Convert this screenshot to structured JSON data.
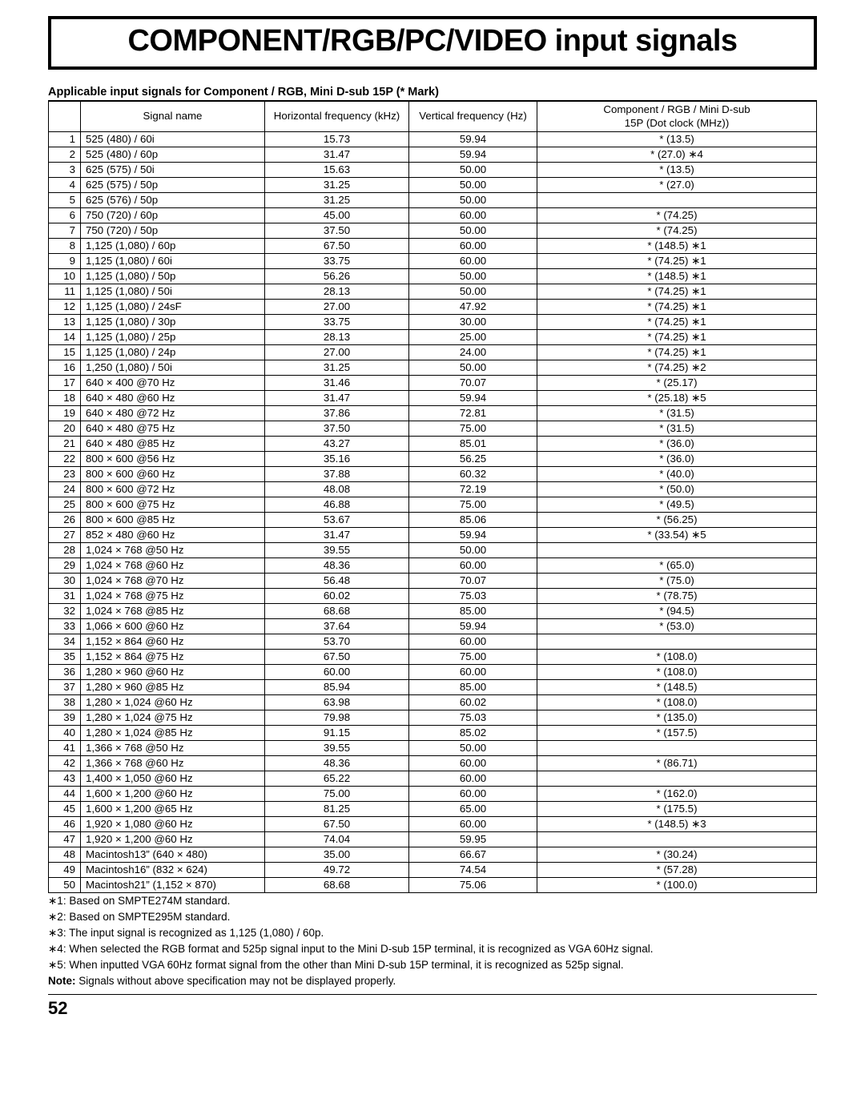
{
  "title": "COMPONENT/RGB/PC/VIDEO input signals",
  "subhead": "Applicable input signals for Component / RGB, Mini D-sub 15P (* Mark)",
  "columns": {
    "idx": "",
    "name": "Signal name",
    "hfreq": "Horizontal frequency (kHz)",
    "vfreq": "Vertical frequency (Hz)",
    "clk_line1": "Component / RGB / Mini D-sub",
    "clk_line2": "15P (Dot clock (MHz))"
  },
  "rows": [
    {
      "n": "1",
      "name": "525   (480) / 60i",
      "h": "15.73",
      "v": "59.94",
      "clk": "*  (13.5)"
    },
    {
      "n": "2",
      "name": "525   (480) / 60p",
      "h": "31.47",
      "v": "59.94",
      "clk": "*  (27.0)    ∗4"
    },
    {
      "n": "3",
      "name": "625   (575) / 50i",
      "h": "15.63",
      "v": "50.00",
      "clk": "*  (13.5)"
    },
    {
      "n": "4",
      "name": "625   (575) / 50p",
      "h": "31.25",
      "v": "50.00",
      "clk": "*  (27.0)"
    },
    {
      "n": "5",
      "name": "625   (576) / 50p",
      "h": "31.25",
      "v": "50.00",
      "clk": ""
    },
    {
      "n": "6",
      "name": "750   (720) / 60p",
      "h": "45.00",
      "v": "60.00",
      "clk": "*  (74.25)"
    },
    {
      "n": "7",
      "name": "750   (720) / 50p",
      "h": "37.50",
      "v": "50.00",
      "clk": "*  (74.25)"
    },
    {
      "n": "8",
      "name": "1,125   (1,080) / 60p",
      "h": "67.50",
      "v": "60.00",
      "clk": "*  (148.5)   ∗1"
    },
    {
      "n": "9",
      "name": "1,125   (1,080) / 60i",
      "h": "33.75",
      "v": "60.00",
      "clk": "*  (74.25)   ∗1"
    },
    {
      "n": "10",
      "name": "1,125   (1,080) / 50p",
      "h": "56.26",
      "v": "50.00",
      "clk": "*  (148.5)   ∗1"
    },
    {
      "n": "11",
      "name": "1,125   (1,080) / 50i",
      "h": "28.13",
      "v": "50.00",
      "clk": "*  (74.25)   ∗1"
    },
    {
      "n": "12",
      "name": "1,125   (1,080) / 24sF",
      "h": "27.00",
      "v": "47.92",
      "clk": "*  (74.25)   ∗1"
    },
    {
      "n": "13",
      "name": "1,125   (1,080) / 30p",
      "h": "33.75",
      "v": "30.00",
      "clk": "*  (74.25)   ∗1"
    },
    {
      "n": "14",
      "name": "1,125   (1,080) / 25p",
      "h": "28.13",
      "v": "25.00",
      "clk": "*  (74.25)   ∗1"
    },
    {
      "n": "15",
      "name": "1,125   (1,080) / 24p",
      "h": "27.00",
      "v": "24.00",
      "clk": "*  (74.25)   ∗1"
    },
    {
      "n": "16",
      "name": "1,250   (1,080) / 50i",
      "h": "31.25",
      "v": "50.00",
      "clk": "*  (74.25)   ∗2"
    },
    {
      "n": "17",
      "name": "640 × 400 @70 Hz",
      "h": "31.46",
      "v": "70.07",
      "clk": "*  (25.17)"
    },
    {
      "n": "18",
      "name": "640 × 480 @60 Hz",
      "h": "31.47",
      "v": "59.94",
      "clk": "*  (25.18)   ∗5"
    },
    {
      "n": "19",
      "name": "640 × 480 @72 Hz",
      "h": "37.86",
      "v": "72.81",
      "clk": "*  (31.5)"
    },
    {
      "n": "20",
      "name": "640 × 480 @75 Hz",
      "h": "37.50",
      "v": "75.00",
      "clk": "*  (31.5)"
    },
    {
      "n": "21",
      "name": "640 × 480 @85 Hz",
      "h": "43.27",
      "v": "85.01",
      "clk": "*  (36.0)"
    },
    {
      "n": "22",
      "name": "800 × 600 @56 Hz",
      "h": "35.16",
      "v": "56.25",
      "clk": "*  (36.0)"
    },
    {
      "n": "23",
      "name": "800 × 600 @60 Hz",
      "h": "37.88",
      "v": "60.32",
      "clk": "*  (40.0)"
    },
    {
      "n": "24",
      "name": "800 × 600 @72 Hz",
      "h": "48.08",
      "v": "72.19",
      "clk": "*  (50.0)"
    },
    {
      "n": "25",
      "name": "800 × 600 @75 Hz",
      "h": "46.88",
      "v": "75.00",
      "clk": "*  (49.5)"
    },
    {
      "n": "26",
      "name": "800 × 600 @85 Hz",
      "h": "53.67",
      "v": "85.06",
      "clk": "*  (56.25)"
    },
    {
      "n": "27",
      "name": "852 × 480 @60 Hz",
      "h": "31.47",
      "v": "59.94",
      "clk": "*  (33.54)   ∗5"
    },
    {
      "n": "28",
      "name": "1,024 × 768 @50 Hz",
      "h": "39.55",
      "v": "50.00",
      "clk": ""
    },
    {
      "n": "29",
      "name": "1,024 × 768 @60 Hz",
      "h": "48.36",
      "v": "60.00",
      "clk": "*  (65.0)"
    },
    {
      "n": "30",
      "name": "1,024 × 768 @70 Hz",
      "h": "56.48",
      "v": "70.07",
      "clk": "*  (75.0)"
    },
    {
      "n": "31",
      "name": "1,024 × 768 @75 Hz",
      "h": "60.02",
      "v": "75.03",
      "clk": "*  (78.75)"
    },
    {
      "n": "32",
      "name": "1,024 × 768 @85 Hz",
      "h": "68.68",
      "v": "85.00",
      "clk": "*  (94.5)"
    },
    {
      "n": "33",
      "name": "1,066 × 600 @60 Hz",
      "h": "37.64",
      "v": "59.94",
      "clk": "*  (53.0)"
    },
    {
      "n": "34",
      "name": "1,152 × 864 @60 Hz",
      "h": "53.70",
      "v": "60.00",
      "clk": ""
    },
    {
      "n": "35",
      "name": "1,152 × 864 @75 Hz",
      "h": "67.50",
      "v": "75.00",
      "clk": "*  (108.0)"
    },
    {
      "n": "36",
      "name": "1,280 × 960 @60 Hz",
      "h": "60.00",
      "v": "60.00",
      "clk": "*  (108.0)"
    },
    {
      "n": "37",
      "name": "1,280 × 960 @85 Hz",
      "h": "85.94",
      "v": "85.00",
      "clk": "*  (148.5)"
    },
    {
      "n": "38",
      "name": "1,280 × 1,024 @60 Hz",
      "h": "63.98",
      "v": "60.02",
      "clk": "*  (108.0)"
    },
    {
      "n": "39",
      "name": "1,280 × 1,024 @75 Hz",
      "h": "79.98",
      "v": "75.03",
      "clk": "*  (135.0)"
    },
    {
      "n": "40",
      "name": "1,280 × 1,024 @85 Hz",
      "h": "91.15",
      "v": "85.02",
      "clk": "*  (157.5)"
    },
    {
      "n": "41",
      "name": "1,366 × 768 @50 Hz",
      "h": "39.55",
      "v": "50.00",
      "clk": ""
    },
    {
      "n": "42",
      "name": "1,366 × 768 @60 Hz",
      "h": "48.36",
      "v": "60.00",
      "clk": "*  (86.71)"
    },
    {
      "n": "43",
      "name": "1,400 × 1,050 @60 Hz",
      "h": "65.22",
      "v": "60.00",
      "clk": ""
    },
    {
      "n": "44",
      "name": "1,600 × 1,200 @60 Hz",
      "h": "75.00",
      "v": "60.00",
      "clk": "*  (162.0)"
    },
    {
      "n": "45",
      "name": "1,600 × 1,200 @65 Hz",
      "h": "81.25",
      "v": "65.00",
      "clk": "*  (175.5)"
    },
    {
      "n": "46",
      "name": "1,920 × 1,080 @60 Hz",
      "h": "67.50",
      "v": "60.00",
      "clk": "*  (148.5)   ∗3"
    },
    {
      "n": "47",
      "name": "1,920 × 1,200 @60 Hz",
      "h": "74.04",
      "v": "59.95",
      "clk": ""
    },
    {
      "n": "48",
      "name": "Macintosh13”  (640 × 480)",
      "h": "35.00",
      "v": "66.67",
      "clk": "*  (30.24)"
    },
    {
      "n": "49",
      "name": "Macintosh16”  (832 × 624)",
      "h": "49.72",
      "v": "74.54",
      "clk": "*  (57.28)"
    },
    {
      "n": "50",
      "name": "Macintosh21”  (1,152 × 870)",
      "h": "68.68",
      "v": "75.06",
      "clk": "*  (100.0)"
    }
  ],
  "notes": [
    "∗1: Based on SMPTE274M standard.",
    "∗2: Based on SMPTE295M standard.",
    "∗3: The input signal is recognized as 1,125 (1,080) / 60p.",
    "∗4: When selected the RGB format and 525p signal input to the Mini D-sub 15P terminal, it is recognized as VGA 60Hz signal.",
    "∗5: When inputted VGA 60Hz format signal from the other than Mini D-sub 15P terminal, it is recognized as 525p signal."
  ],
  "noteFinalLabel": "Note:",
  "noteFinalText": " Signals without above specification may not be displayed properly.",
  "pageNumber": "52"
}
